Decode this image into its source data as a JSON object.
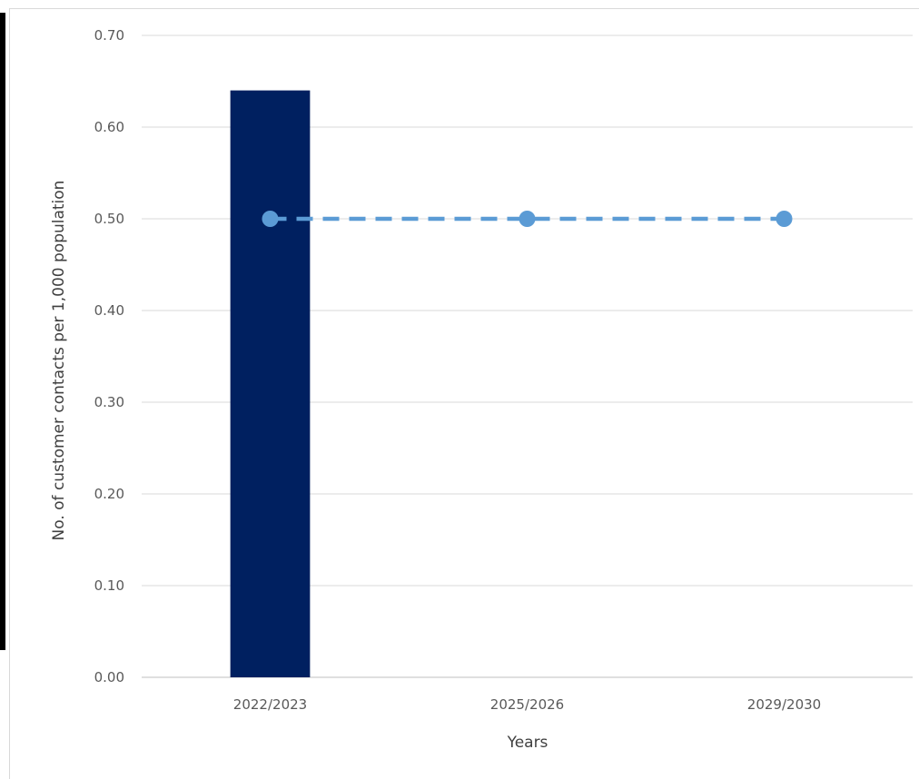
{
  "chart_data": {
    "type": "bar",
    "categories": [
      "2022/2023",
      "2025/2026",
      "2029/2030"
    ],
    "series": [
      {
        "kind": "bar",
        "values": [
          0.64,
          null,
          null
        ],
        "color": "#002060"
      },
      {
        "kind": "line",
        "style": "dashed",
        "marker": "circle",
        "values": [
          0.5,
          0.5,
          0.5
        ],
        "color": "#5b9bd5"
      }
    ],
    "xlabel": "Years",
    "ylabel": "No. of customer contacts per 1,000 population",
    "ylim": [
      0,
      0.7
    ],
    "yticks": [
      "0.00",
      "0.10",
      "0.20",
      "0.30",
      "0.40",
      "0.50",
      "0.60",
      "0.70"
    ],
    "grid": true,
    "legend": "none"
  }
}
